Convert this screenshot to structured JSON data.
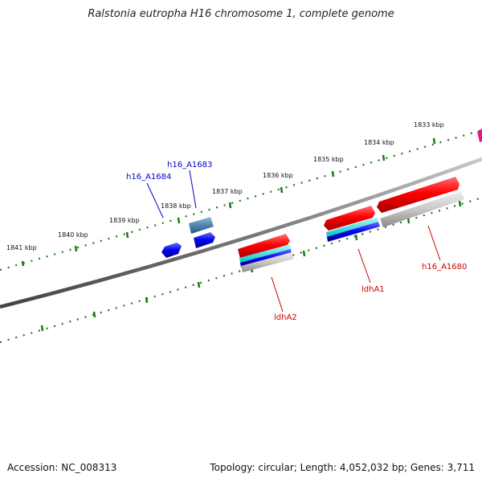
{
  "title": "Ralstonia eutropha H16 chromosome 1, complete genome",
  "footer": {
    "accession": "Accession: NC_008313",
    "genome_info": "Topology: circular; Length: 4,052,032 bp; Genes: 3,711"
  },
  "scale_labels": [
    "1841 kbp",
    "1840 kbp",
    "1839 kbp",
    "1838 kbp",
    "1837 kbp",
    "1836 kbp",
    "1835 kbp",
    "1834 kbp",
    "1833 kbp"
  ],
  "gene_labels": {
    "h16_A1684": "h16_A1684",
    "h16_A1683": "h16_A1683",
    "ldhA2": "ldhA2",
    "ldhA1": "ldhA1",
    "h16_A1680": "h16_A1680"
  },
  "colors": {
    "forward_gene": "#ff0000",
    "reverse_gene_blue": "#0000ee",
    "steel_gene": "#4f86b0",
    "grey_feature": "#bdbdbd",
    "cyan_feature": "#33dddd",
    "magenta_feature": "#e8148c",
    "tick_green": "#1a7a1a",
    "backbone": "#777777",
    "blue_label": "#0000cc",
    "red_label": "#cc0000"
  }
}
